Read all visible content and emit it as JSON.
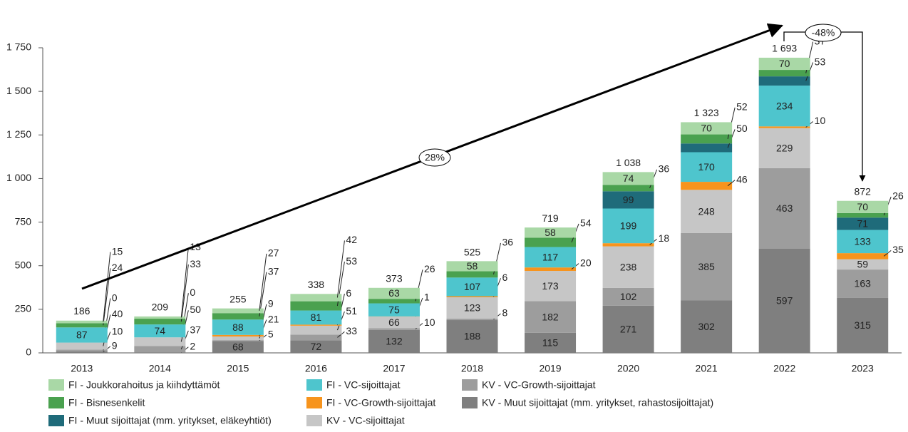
{
  "chart_data": {
    "type": "bar",
    "stacked": true,
    "categories": [
      "2013",
      "2014",
      "2015",
      "2016",
      "2017",
      "2018",
      "2019",
      "2020",
      "2021",
      "2022",
      "2023"
    ],
    "series": [
      {
        "name": "KV - Muut sijoittajat (mm. yritykset, rahastosijoittajat)",
        "color": "#7f7f7f",
        "label_color": "#ffffff",
        "values": [
          9,
          2,
          68,
          72,
          132,
          188,
          115,
          271,
          302,
          597,
          315
        ]
      },
      {
        "name": "KV - VC-Growth-sijoittajat",
        "color": "#9d9d9d",
        "label_color": "#222222",
        "values": [
          10,
          37,
          5,
          33,
          10,
          8,
          182,
          102,
          385,
          463,
          163
        ]
      },
      {
        "name": "KV - VC-sijoittajat",
        "color": "#c6c6c6",
        "label_color": "#222222",
        "values": [
          40,
          50,
          21,
          51,
          66,
          123,
          173,
          238,
          248,
          229,
          59
        ]
      },
      {
        "name": "FI - VC-Growth-sijoittajat",
        "color": "#f7941d",
        "label_color": "#222222",
        "values": [
          0,
          0,
          9,
          6,
          1,
          6,
          20,
          18,
          46,
          10,
          35
        ]
      },
      {
        "name": "FI - VC-sijoittajat",
        "color": "#4ec5cd",
        "label_color": "#222222",
        "values": [
          87,
          74,
          88,
          81,
          75,
          107,
          117,
          199,
          170,
          234,
          133
        ]
      },
      {
        "name": "FI - Muut sijoittajat (mm. yritykset, eläkeyhtiöt)",
        "color": "#1f6b7a",
        "label_color": "#ffffff",
        "values": [
          null,
          null,
          null,
          null,
          null,
          null,
          null,
          99,
          50,
          53,
          71
        ]
      },
      {
        "name": "FI - Bisnesenkelit",
        "color": "#4aa14f",
        "label_color": "#ffffff",
        "values": [
          24,
          33,
          37,
          53,
          26,
          36,
          54,
          36,
          52,
          37,
          26
        ]
      },
      {
        "name": "FI - Joukkorahoitus ja kiihdyttämöt",
        "color": "#a9d8a6",
        "label_color": "#222222",
        "values": [
          15,
          13,
          27,
          42,
          63,
          58,
          58,
          74,
          70,
          70,
          70
        ]
      }
    ],
    "totals": [
      186,
      209,
      255,
      338,
      373,
      525,
      719,
      1038,
      1323,
      1693,
      872
    ],
    "totals_value_labels": [
      "186",
      "209",
      "255",
      "338",
      "373",
      "525",
      "719",
      "1 038",
      "1 323",
      "1 693",
      "872"
    ],
    "ylim": [
      0,
      1900
    ],
    "yticks": [
      0,
      250,
      500,
      750,
      {
        "value": 1000,
        "label": "1 000"
      },
      {
        "value": 1250,
        "label": "1 250"
      },
      {
        "value": 1500,
        "label": "1 500"
      },
      {
        "value": 1750,
        "label": "1 750"
      }
    ],
    "annotations": [
      "28%",
      "-48%"
    ]
  }
}
